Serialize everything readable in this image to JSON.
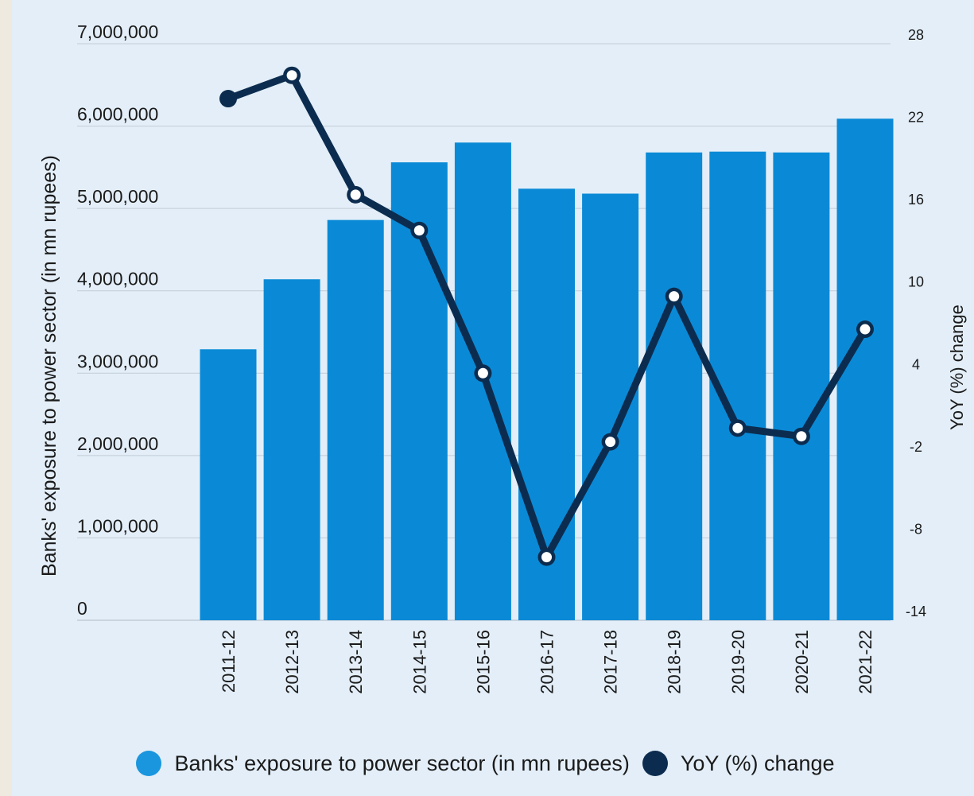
{
  "chart_data": {
    "type": "bar",
    "categories": [
      "2011-12",
      "2012-13",
      "2013-14",
      "2014-15",
      "2015-16",
      "2016-17",
      "2017-18",
      "2018-19",
      "2019-20",
      "2020-21",
      "2021-22"
    ],
    "series": [
      {
        "name": "Banks' exposure to power sector (in mn rupees)",
        "type": "bar",
        "axis": "left",
        "color": "#0a8ad6",
        "values": [
          3290000,
          4140000,
          4860000,
          5560000,
          5800000,
          5240000,
          5180000,
          5680000,
          5690000,
          5680000,
          6090000
        ]
      },
      {
        "name": "YoY (%) change",
        "type": "line",
        "axis": "right",
        "color": "#0c2c4f",
        "values": [
          24,
          25.7,
          17,
          14.4,
          4,
          -9.4,
          -1,
          9.6,
          0,
          -0.6,
          7.2
        ]
      }
    ],
    "ylabel": "Banks' exposure to power sector (in mn rupees)",
    "ylabel_right": "YoY (%) change",
    "ylim": [
      0,
      7000000
    ],
    "ylim_right": [
      -14,
      28
    ],
    "yticks": [
      "0",
      "1,000,000",
      "2,000,000",
      "3,000,000",
      "4,000,000",
      "5,000,000",
      "6,000,000",
      "7,000,000"
    ],
    "yticks_right": [
      "-14",
      "-8",
      "-2",
      "4",
      "10",
      "16",
      "22",
      "28"
    ],
    "grid": true,
    "legend_position": "bottom"
  },
  "legend": {
    "bar_label": "Banks' exposure to power sector (in mn rupees)",
    "line_label": "YoY (%) change"
  },
  "colors": {
    "bar": "#0a8ad6",
    "line": "#0c2c4f",
    "background": "#e3eef8",
    "grid": "#c2ccd6"
  }
}
